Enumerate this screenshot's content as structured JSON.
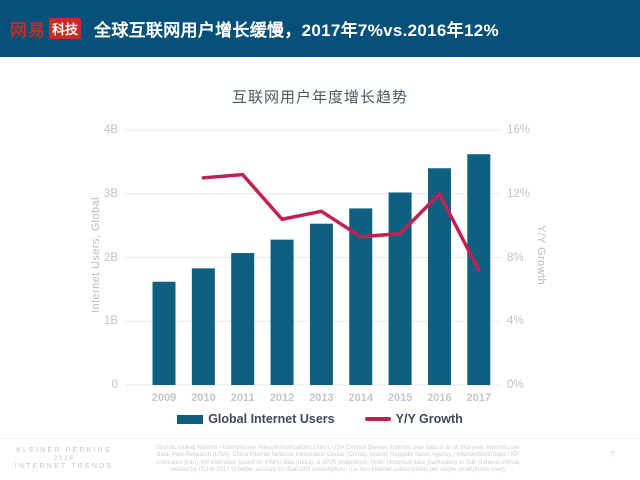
{
  "header": {
    "logo": {
      "brand": "网易",
      "sub": "科技"
    },
    "title": "全球互联网用户增长缓慢，2017年7%vs.2016年12%"
  },
  "chart_data": {
    "type": "bar",
    "title": "互联网用户年度增长趋势",
    "categories": [
      "2009",
      "2010",
      "2011",
      "2012",
      "2013",
      "2014",
      "2015",
      "2016",
      "2017"
    ],
    "series": [
      {
        "name": "Global Internet Users",
        "type": "bar",
        "axis": "left",
        "unit": "B",
        "color": "#0e5f80",
        "values": [
          1.62,
          1.83,
          2.07,
          2.28,
          2.53,
          2.77,
          3.02,
          3.4,
          3.62
        ]
      },
      {
        "name": "Y/Y Growth",
        "type": "line",
        "axis": "right",
        "unit": "%",
        "color": "#c32052",
        "values": [
          null,
          13,
          13.2,
          10.4,
          10.9,
          9.3,
          9.5,
          12,
          7.2
        ]
      }
    ],
    "left_axis": {
      "label": "Internet Users, Global",
      "ticks": [
        "0",
        "1B",
        "2B",
        "3B",
        "4B"
      ],
      "range": [
        0,
        4
      ]
    },
    "right_axis": {
      "label": "Y/Y Growth",
      "ticks": [
        "0%",
        "4%",
        "8%",
        "12%",
        "16%"
      ],
      "range": [
        0,
        16
      ]
    },
    "grid": true,
    "legend_position": "bottom"
  },
  "footer": {
    "brand_lines": [
      "KLEINER PERKINS",
      "2018",
      "INTERNET TRENDS"
    ],
    "source_lines": [
      "Source: United Nations / International Telecommunications Union, USA Census Bureau. Internet user data is as of mid-year. Internet user",
      "data: Pew Research (USA), China Internet Network Information Center (China), Islamic Republic News Agency / InternetWorldStats / KP",
      "estimates (Iran), KP estimates based on IAMAI data (India), & APJII (Indonesia).  Note: Historical data (particularly in Sub-Saharan Africa)",
      "revised by ITU in 2017 to better account for dual-SIM subscriptions (i.e. two Internet subscriptions per single smartphone user)."
    ],
    "page_number": "7"
  },
  "colors": {
    "banner_bg": "#075079",
    "logo_red": "#c62d27",
    "bar": "#0e5f80",
    "line": "#c32052",
    "gridline": "#eaebec",
    "tick_text": "#bfc4c9",
    "title_text": "#4a5866",
    "legend_text": "#3e4a59"
  }
}
